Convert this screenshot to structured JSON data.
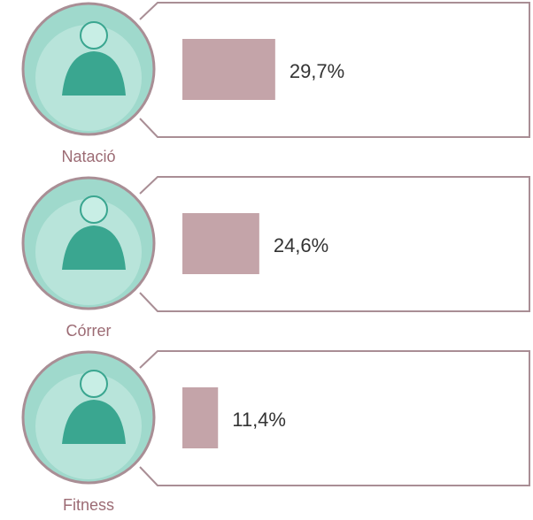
{
  "chart_data": {
    "type": "bar",
    "orientation": "horizontal",
    "categories": [
      "Natació",
      "Córrer",
      "Fitness"
    ],
    "values": [
      29.7,
      24.6,
      11.4
    ],
    "value_labels": [
      "29,7%",
      "24,6%",
      "11,4%"
    ],
    "color": "#c4a4a9"
  }
}
